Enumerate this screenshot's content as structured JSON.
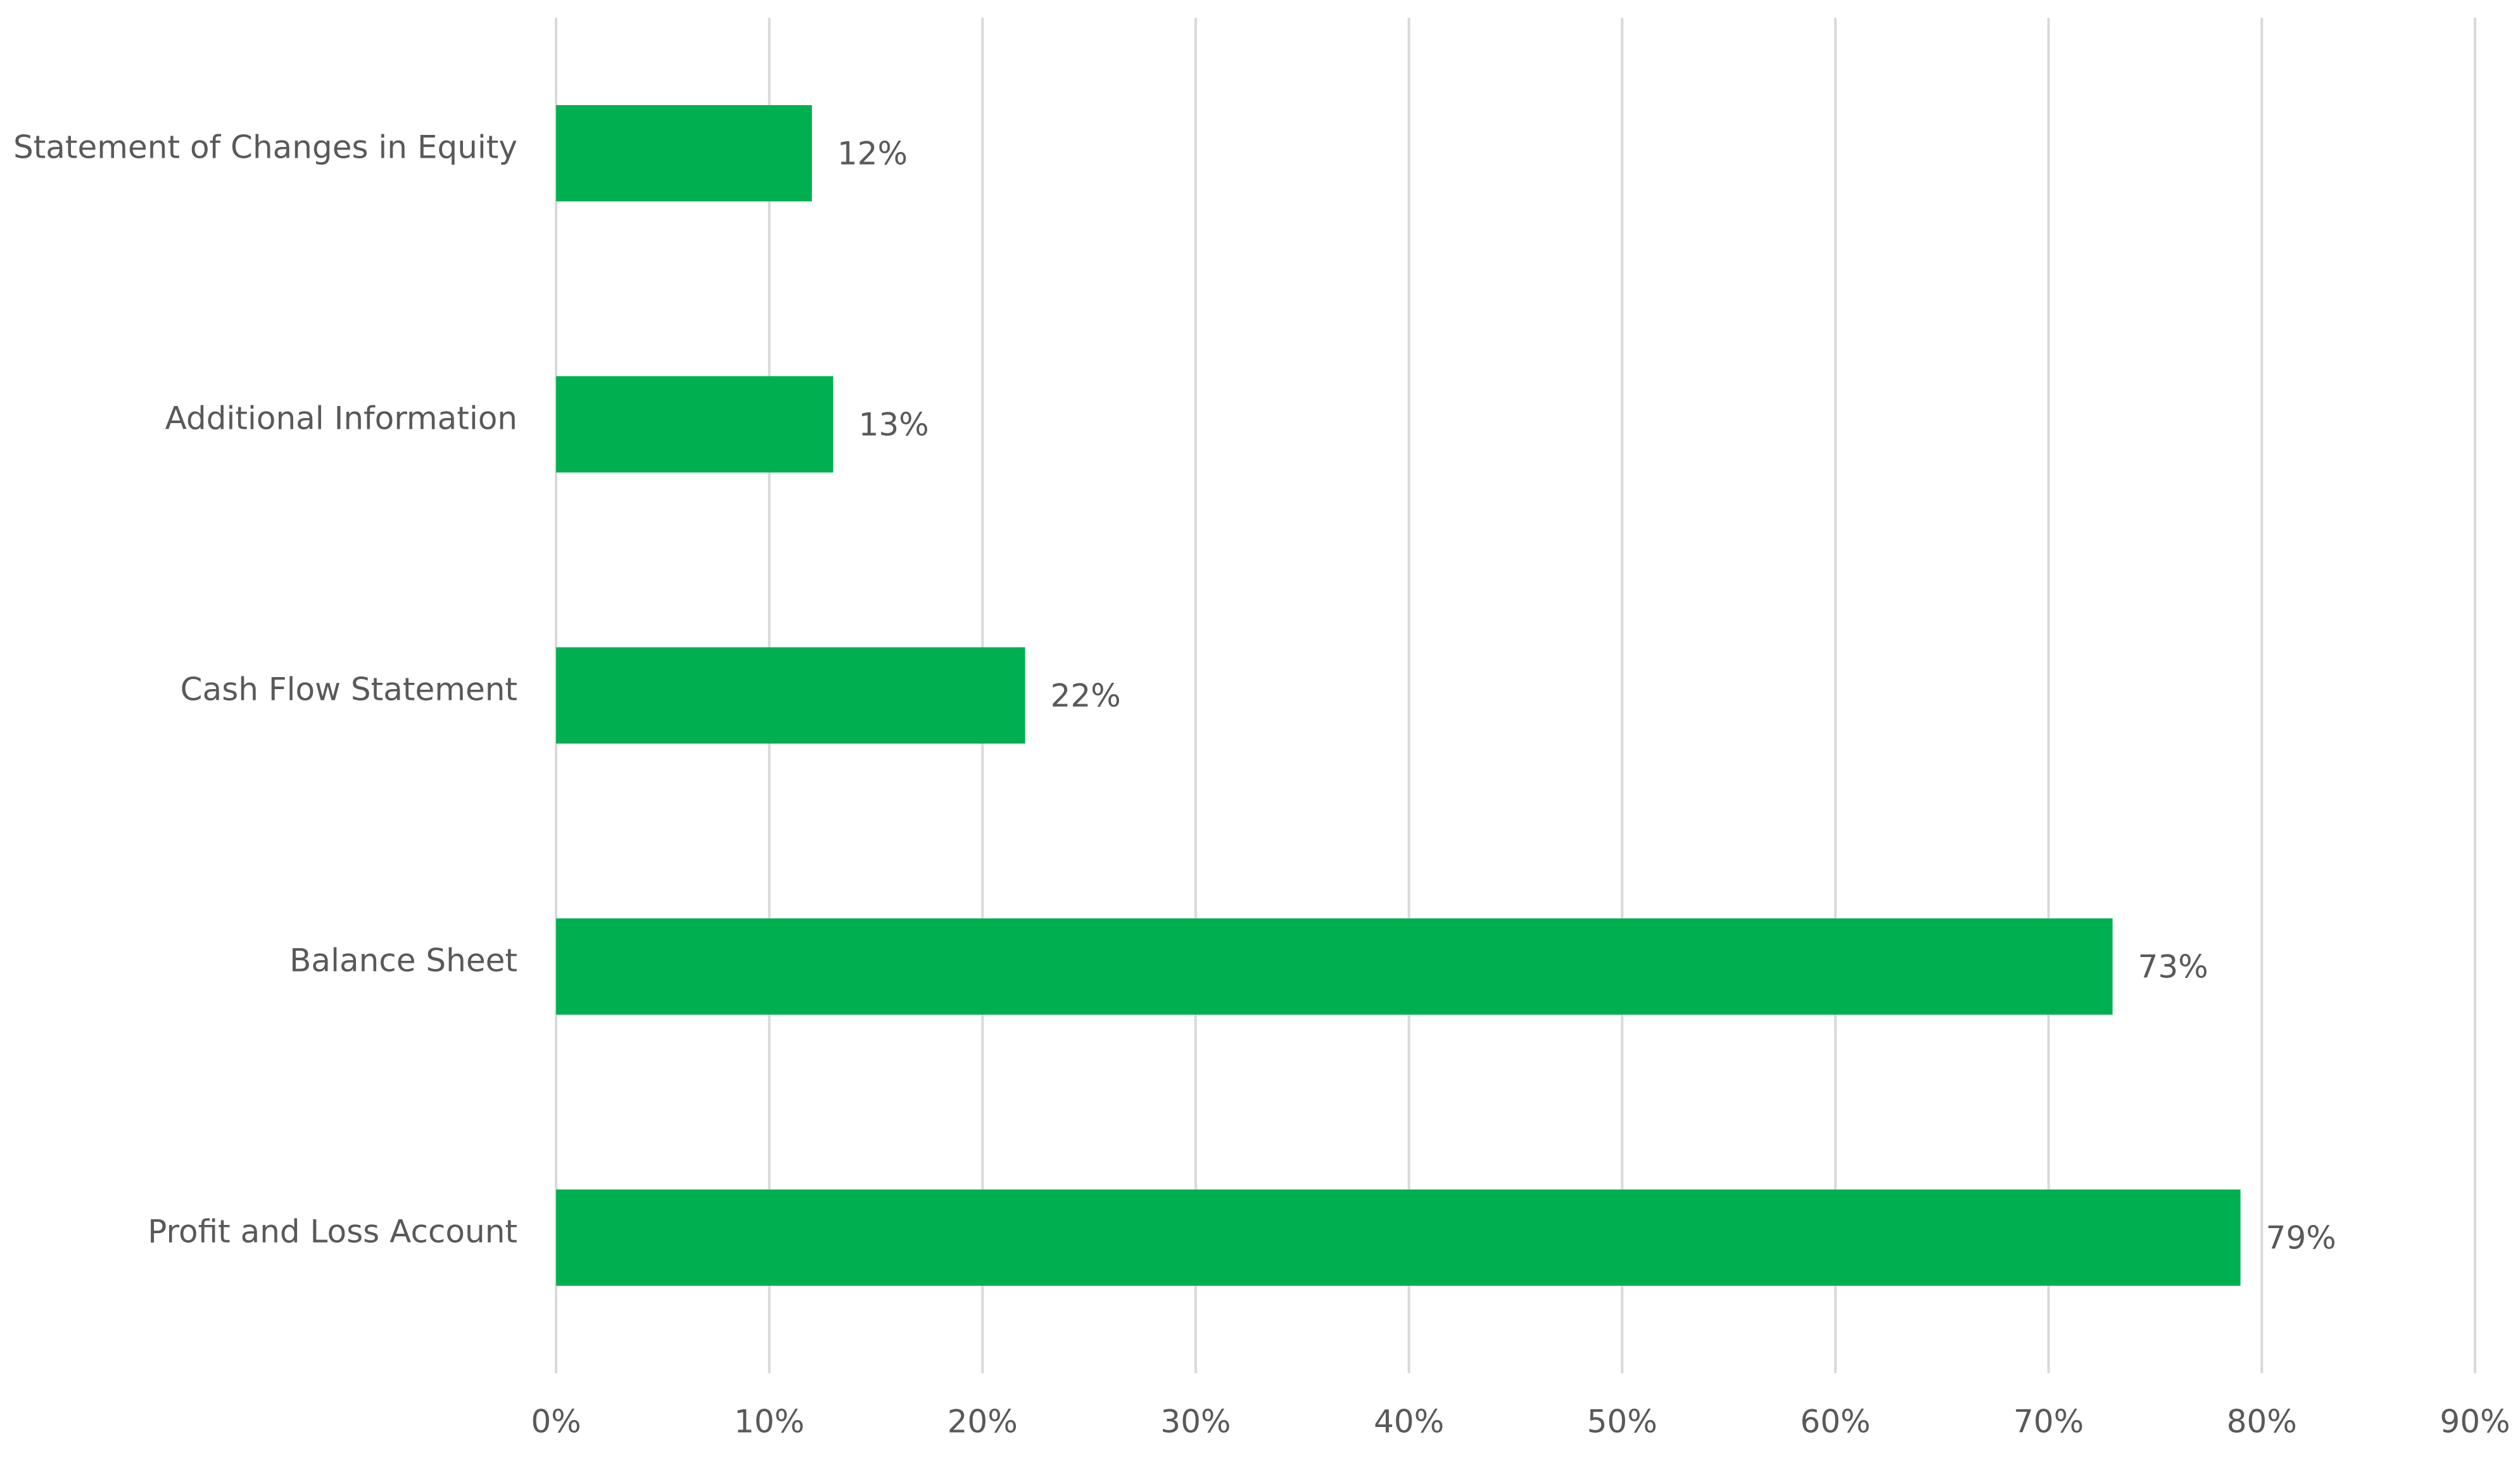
{
  "chart_data": {
    "type": "hbar",
    "categories": [
      "Statement of Changes in Equity",
      "Additional Information",
      "Cash Flow Statement",
      "Balance Sheet",
      "Profit and Loss Account"
    ],
    "values": [
      12,
      13,
      22,
      73,
      79
    ],
    "value_labels": [
      "12%",
      "13%",
      "22%",
      "73%",
      "79%"
    ],
    "color": "#00b050",
    "xlim": [
      0,
      90
    ],
    "xticks": [
      {
        "value": 0,
        "label": "0%"
      },
      {
        "value": 10,
        "label": "10%"
      },
      {
        "value": 20,
        "label": "20%"
      },
      {
        "value": 30,
        "label": "30%"
      },
      {
        "value": 40,
        "label": "40%"
      },
      {
        "value": 50,
        "label": "50%"
      },
      {
        "value": 60,
        "label": "60%"
      },
      {
        "value": 70,
        "label": "70%"
      },
      {
        "value": 80,
        "label": "80%"
      },
      {
        "value": 90,
        "label": "90%"
      }
    ],
    "grid": true
  }
}
